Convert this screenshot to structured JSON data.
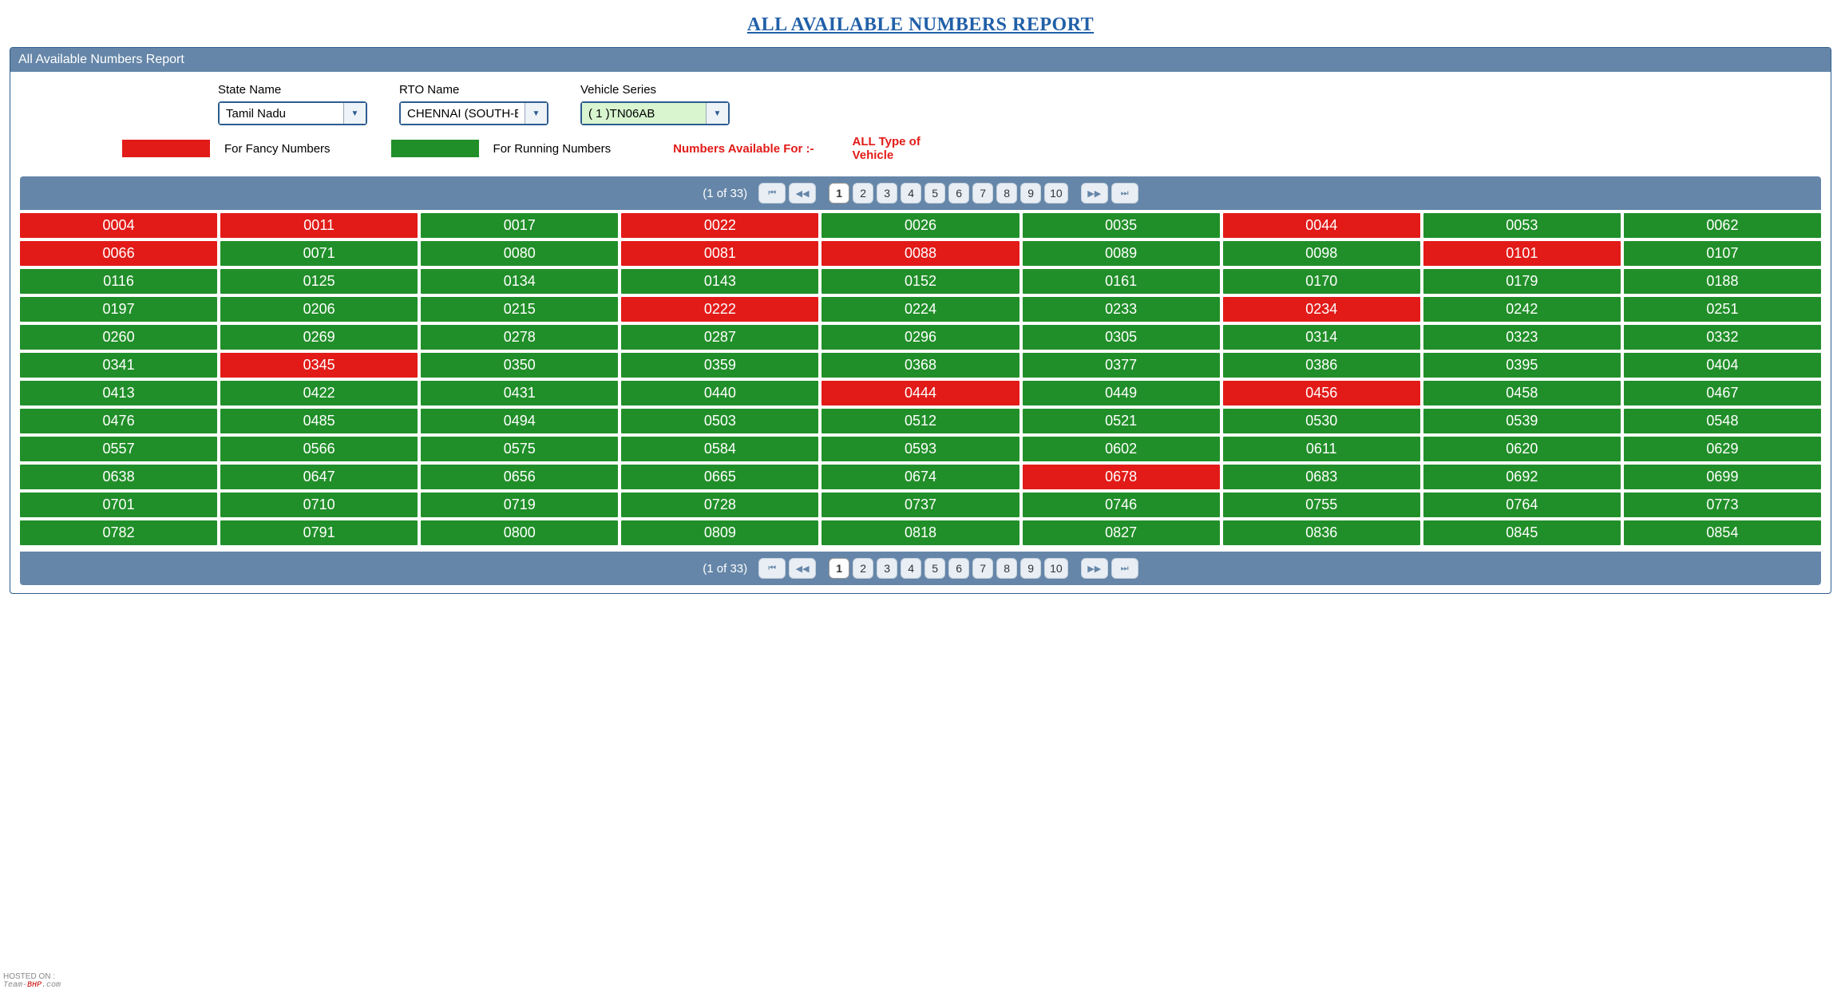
{
  "title": "ALL AVAILABLE NUMBERS REPORT",
  "panel_title": "All Available Numbers Report",
  "filters": {
    "state": {
      "label": "State Name",
      "value": "Tamil Nadu"
    },
    "rto": {
      "label": "RTO Name",
      "value": "CHENNAI (SOUTH-EA"
    },
    "series": {
      "label": "Vehicle Series",
      "value": "( 1 )TN06AB"
    }
  },
  "legend": {
    "fancy": "For Fancy Numbers",
    "running": "For Running Numbers",
    "available_for": "Numbers Available For :-",
    "vehicle_type": "ALL Type of Vehicle"
  },
  "colors": {
    "fancy": "#e21b18",
    "running": "#218f29",
    "header_bg": "#6586a8",
    "title_color": "#2160a8"
  },
  "pager": {
    "info": "(1 of 33)",
    "pages": [
      "1",
      "2",
      "3",
      "4",
      "5",
      "6",
      "7",
      "8",
      "9",
      "10"
    ],
    "active": "1"
  },
  "grid": {
    "columns": 9,
    "cells": [
      {
        "n": "0004",
        "t": "fancy"
      },
      {
        "n": "0011",
        "t": "fancy"
      },
      {
        "n": "0017",
        "t": "running"
      },
      {
        "n": "0022",
        "t": "fancy"
      },
      {
        "n": "0026",
        "t": "running"
      },
      {
        "n": "0035",
        "t": "running"
      },
      {
        "n": "0044",
        "t": "fancy"
      },
      {
        "n": "0053",
        "t": "running"
      },
      {
        "n": "0062",
        "t": "running"
      },
      {
        "n": "0066",
        "t": "fancy"
      },
      {
        "n": "0071",
        "t": "running"
      },
      {
        "n": "0080",
        "t": "running"
      },
      {
        "n": "0081",
        "t": "fancy"
      },
      {
        "n": "0088",
        "t": "fancy"
      },
      {
        "n": "0089",
        "t": "running"
      },
      {
        "n": "0098",
        "t": "running"
      },
      {
        "n": "0101",
        "t": "fancy"
      },
      {
        "n": "0107",
        "t": "running"
      },
      {
        "n": "0116",
        "t": "running"
      },
      {
        "n": "0125",
        "t": "running"
      },
      {
        "n": "0134",
        "t": "running"
      },
      {
        "n": "0143",
        "t": "running"
      },
      {
        "n": "0152",
        "t": "running"
      },
      {
        "n": "0161",
        "t": "running"
      },
      {
        "n": "0170",
        "t": "running"
      },
      {
        "n": "0179",
        "t": "running"
      },
      {
        "n": "0188",
        "t": "running"
      },
      {
        "n": "0197",
        "t": "running"
      },
      {
        "n": "0206",
        "t": "running"
      },
      {
        "n": "0215",
        "t": "running"
      },
      {
        "n": "0222",
        "t": "fancy"
      },
      {
        "n": "0224",
        "t": "running"
      },
      {
        "n": "0233",
        "t": "running"
      },
      {
        "n": "0234",
        "t": "fancy"
      },
      {
        "n": "0242",
        "t": "running"
      },
      {
        "n": "0251",
        "t": "running"
      },
      {
        "n": "0260",
        "t": "running"
      },
      {
        "n": "0269",
        "t": "running"
      },
      {
        "n": "0278",
        "t": "running"
      },
      {
        "n": "0287",
        "t": "running"
      },
      {
        "n": "0296",
        "t": "running"
      },
      {
        "n": "0305",
        "t": "running"
      },
      {
        "n": "0314",
        "t": "running"
      },
      {
        "n": "0323",
        "t": "running"
      },
      {
        "n": "0332",
        "t": "running"
      },
      {
        "n": "0341",
        "t": "running"
      },
      {
        "n": "0345",
        "t": "fancy"
      },
      {
        "n": "0350",
        "t": "running"
      },
      {
        "n": "0359",
        "t": "running"
      },
      {
        "n": "0368",
        "t": "running"
      },
      {
        "n": "0377",
        "t": "running"
      },
      {
        "n": "0386",
        "t": "running"
      },
      {
        "n": "0395",
        "t": "running"
      },
      {
        "n": "0404",
        "t": "running"
      },
      {
        "n": "0413",
        "t": "running"
      },
      {
        "n": "0422",
        "t": "running"
      },
      {
        "n": "0431",
        "t": "running"
      },
      {
        "n": "0440",
        "t": "running"
      },
      {
        "n": "0444",
        "t": "fancy"
      },
      {
        "n": "0449",
        "t": "running"
      },
      {
        "n": "0456",
        "t": "fancy"
      },
      {
        "n": "0458",
        "t": "running"
      },
      {
        "n": "0467",
        "t": "running"
      },
      {
        "n": "0476",
        "t": "running"
      },
      {
        "n": "0485",
        "t": "running"
      },
      {
        "n": "0494",
        "t": "running"
      },
      {
        "n": "0503",
        "t": "running"
      },
      {
        "n": "0512",
        "t": "running"
      },
      {
        "n": "0521",
        "t": "running"
      },
      {
        "n": "0530",
        "t": "running"
      },
      {
        "n": "0539",
        "t": "running"
      },
      {
        "n": "0548",
        "t": "running"
      },
      {
        "n": "0557",
        "t": "running"
      },
      {
        "n": "0566",
        "t": "running"
      },
      {
        "n": "0575",
        "t": "running"
      },
      {
        "n": "0584",
        "t": "running"
      },
      {
        "n": "0593",
        "t": "running"
      },
      {
        "n": "0602",
        "t": "running"
      },
      {
        "n": "0611",
        "t": "running"
      },
      {
        "n": "0620",
        "t": "running"
      },
      {
        "n": "0629",
        "t": "running"
      },
      {
        "n": "0638",
        "t": "running"
      },
      {
        "n": "0647",
        "t": "running"
      },
      {
        "n": "0656",
        "t": "running"
      },
      {
        "n": "0665",
        "t": "running"
      },
      {
        "n": "0674",
        "t": "running"
      },
      {
        "n": "0678",
        "t": "fancy"
      },
      {
        "n": "0683",
        "t": "running"
      },
      {
        "n": "0692",
        "t": "running"
      },
      {
        "n": "0699",
        "t": "running"
      },
      {
        "n": "0701",
        "t": "running"
      },
      {
        "n": "0710",
        "t": "running"
      },
      {
        "n": "0719",
        "t": "running"
      },
      {
        "n": "0728",
        "t": "running"
      },
      {
        "n": "0737",
        "t": "running"
      },
      {
        "n": "0746",
        "t": "running"
      },
      {
        "n": "0755",
        "t": "running"
      },
      {
        "n": "0764",
        "t": "running"
      },
      {
        "n": "0773",
        "t": "running"
      },
      {
        "n": "0782",
        "t": "running"
      },
      {
        "n": "0791",
        "t": "running"
      },
      {
        "n": "0800",
        "t": "running"
      },
      {
        "n": "0809",
        "t": "running"
      },
      {
        "n": "0818",
        "t": "running"
      },
      {
        "n": "0827",
        "t": "running"
      },
      {
        "n": "0836",
        "t": "running"
      },
      {
        "n": "0845",
        "t": "running"
      },
      {
        "n": "0854",
        "t": "running"
      }
    ]
  },
  "watermark": {
    "hosted": "HOSTED ON :",
    "brand_a": "Team-",
    "brand_b": "BHP",
    "brand_c": ".com"
  }
}
